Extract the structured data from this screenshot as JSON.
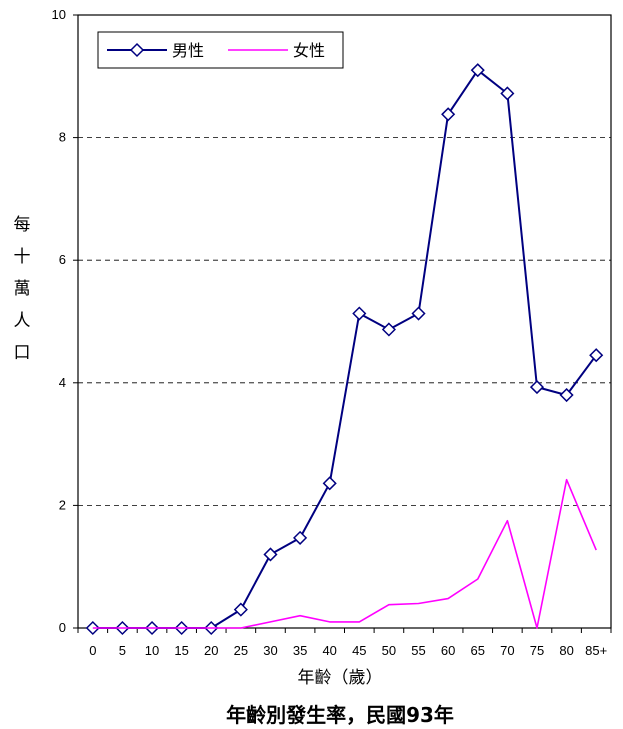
{
  "chart_data": {
    "type": "line",
    "categories": [
      "0",
      "5",
      "10",
      "15",
      "20",
      "25",
      "30",
      "35",
      "40",
      "45",
      "50",
      "55",
      "60",
      "65",
      "70",
      "75",
      "80",
      "85+"
    ],
    "series": [
      {
        "name": "男性",
        "color": "#000080",
        "marker": "diamond",
        "values": [
          0,
          0,
          0,
          0,
          0,
          0.3,
          1.2,
          1.47,
          2.36,
          5.13,
          4.87,
          5.13,
          8.38,
          9.1,
          8.72,
          3.93,
          3.8,
          4.45
        ]
      },
      {
        "name": "女性",
        "color": "#ff00ff",
        "marker": "none",
        "values": [
          0,
          0,
          0,
          0,
          0,
          0,
          0.1,
          0.2,
          0.1,
          0.1,
          0.38,
          0.4,
          0.48,
          0.8,
          1.75,
          0,
          2.42,
          1.27
        ]
      }
    ],
    "ylim": [
      0,
      10
    ],
    "yticks": [
      "0",
      "2",
      "4",
      "6",
      "8",
      "10"
    ],
    "ylabel": "每十萬人口",
    "xlabel": "年齡（歲）",
    "title": "年齡別發生率，民國93年",
    "grid": "horizontal-dashed",
    "legend": "top-left"
  }
}
